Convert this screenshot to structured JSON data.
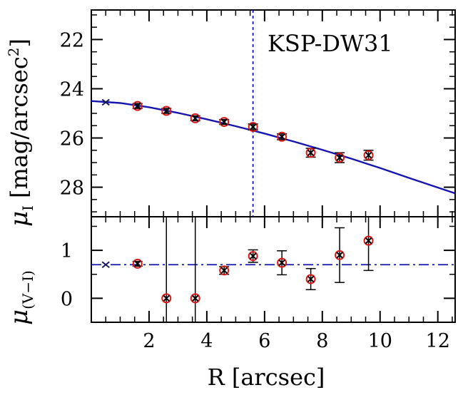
{
  "chart_data": [
    {
      "type": "scatter",
      "panel": "top",
      "ylabel": "μ_I [mag/arcsec²]",
      "ylabel_main": "μ",
      "ylabel_sub": "I",
      "ylabel_unit": "[mag/arcsec",
      "ylabel_unit_sup": "2",
      "ylabel_unit_close": "]",
      "annotation": "KSP-DW31",
      "xlim": [
        0,
        12.6
      ],
      "ylim": [
        29.2,
        20.8
      ],
      "y_inverted": true,
      "yticks": [
        22,
        24,
        26,
        28
      ],
      "vline_x": 5.6,
      "first_point": {
        "x": 0.5,
        "y": 24.55
      },
      "points": [
        {
          "x": 1.6,
          "y": 24.7,
          "err": 0.1
        },
        {
          "x": 2.6,
          "y": 24.9,
          "err": 0.1
        },
        {
          "x": 3.6,
          "y": 25.2,
          "err": 0.1
        },
        {
          "x": 4.6,
          "y": 25.35,
          "err": 0.1
        },
        {
          "x": 5.6,
          "y": 25.55,
          "err": 0.12
        },
        {
          "x": 6.6,
          "y": 25.95,
          "err": 0.12
        },
        {
          "x": 7.6,
          "y": 26.6,
          "err": 0.18
        },
        {
          "x": 8.6,
          "y": 26.8,
          "err": 0.2
        },
        {
          "x": 9.6,
          "y": 26.7,
          "err": 0.2
        }
      ],
      "model_curve": [
        [
          0,
          24.5
        ],
        [
          1,
          24.58
        ],
        [
          2,
          24.75
        ],
        [
          3,
          24.98
        ],
        [
          4,
          25.24
        ],
        [
          5,
          25.52
        ],
        [
          6,
          25.82
        ],
        [
          7,
          26.14
        ],
        [
          8,
          26.48
        ],
        [
          9,
          26.84
        ],
        [
          10,
          27.22
        ],
        [
          11,
          27.62
        ],
        [
          12.6,
          28.25
        ]
      ]
    },
    {
      "type": "scatter",
      "panel": "bottom",
      "xlabel": "R [arcsec]",
      "ylabel": "μ_(V−I)",
      "ylabel_main": "μ",
      "ylabel_sub": "(V−I)",
      "xlim": [
        0,
        12.6
      ],
      "ylim": [
        -0.5,
        1.7
      ],
      "xticks": [
        2,
        4,
        6,
        8,
        10,
        12
      ],
      "yticks": [
        0,
        1
      ],
      "hline_y": 0.7,
      "first_point": {
        "x": 0.5,
        "y": 0.7
      },
      "points": [
        {
          "x": 1.6,
          "y": 0.72,
          "err": 0.05
        },
        {
          "x": 2.6,
          "y": 0.0,
          "err_lo": 0.5,
          "err_hi": 1.7
        },
        {
          "x": 3.6,
          "y": 0.0,
          "err_lo": 0.5,
          "err_hi": 1.7
        },
        {
          "x": 4.6,
          "y": 0.58,
          "err": 0.08
        },
        {
          "x": 5.6,
          "y": 0.88,
          "err": 0.13
        },
        {
          "x": 6.6,
          "y": 0.74,
          "err": 0.25
        },
        {
          "x": 7.6,
          "y": 0.4,
          "err": 0.22
        },
        {
          "x": 8.6,
          "y": 0.9,
          "err": 0.57
        },
        {
          "x": 9.6,
          "y": 1.2,
          "err": 0.62
        }
      ]
    }
  ],
  "colors": {
    "model_line": "#1515b0",
    "marker_circle": "#dd1a1a",
    "cross": "#000000",
    "axes": "#000000"
  }
}
